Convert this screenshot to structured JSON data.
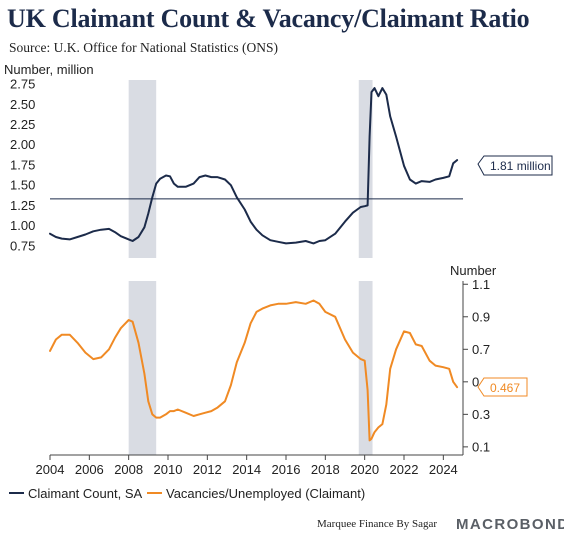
{
  "chart_data": {
    "type": "line",
    "title": "UK Claimant Count & Vacancy/Claimant Ratio",
    "subtitle": "Source: U.K. Office for National Statistics (ONS)",
    "credit": "Marquee Finance By Sagar",
    "logo": "MACROBOND",
    "xlabel": "",
    "x_ticks": [
      "2004",
      "2006",
      "2008",
      "2010",
      "2012",
      "2014",
      "2016",
      "2018",
      "2020",
      "2022",
      "2024"
    ],
    "xlim": [
      2004,
      2025
    ],
    "recessions": [
      [
        2008.0,
        2009.4
      ],
      [
        2019.7,
        2020.4
      ]
    ],
    "panels": [
      {
        "id": "top",
        "ylabel": "Number, million",
        "ylim": [
          0.6,
          2.8
        ],
        "y_ticks": [
          "2.75",
          "2.50",
          "2.25",
          "2.00",
          "1.75",
          "1.50",
          "1.25",
          "1.00",
          "0.75"
        ],
        "y_tick_values": [
          2.75,
          2.5,
          2.25,
          2.0,
          1.75,
          1.5,
          1.25,
          1.0,
          0.75
        ],
        "reference_line": 1.33,
        "end_label": "1.81 million",
        "series": {
          "name": "Claimant Count, SA",
          "color": "#1c2b4a",
          "x": [
            2004.0,
            2004.3,
            2004.6,
            2005.0,
            2005.4,
            2005.8,
            2006.2,
            2006.6,
            2007.0,
            2007.3,
            2007.6,
            2008.0,
            2008.2,
            2008.5,
            2008.8,
            2009.0,
            2009.2,
            2009.4,
            2009.6,
            2009.9,
            2010.1,
            2010.3,
            2010.5,
            2010.9,
            2011.3,
            2011.6,
            2011.9,
            2012.2,
            2012.5,
            2012.9,
            2013.2,
            2013.5,
            2013.9,
            2014.2,
            2014.5,
            2014.8,
            2015.2,
            2015.6,
            2016.0,
            2016.5,
            2017.0,
            2017.4,
            2017.7,
            2018.0,
            2018.5,
            2019.0,
            2019.4,
            2019.8,
            2020.0,
            2020.15,
            2020.25,
            2020.35,
            2020.5,
            2020.7,
            2020.9,
            2021.1,
            2021.3,
            2021.6,
            2022.0,
            2022.3,
            2022.6,
            2022.9,
            2023.3,
            2023.6,
            2024.0,
            2024.3,
            2024.5,
            2024.7
          ],
          "values": [
            0.9,
            0.86,
            0.84,
            0.83,
            0.86,
            0.89,
            0.93,
            0.95,
            0.96,
            0.92,
            0.87,
            0.83,
            0.81,
            0.86,
            0.98,
            1.15,
            1.35,
            1.52,
            1.58,
            1.62,
            1.61,
            1.52,
            1.48,
            1.48,
            1.52,
            1.6,
            1.62,
            1.6,
            1.6,
            1.57,
            1.5,
            1.35,
            1.2,
            1.05,
            0.95,
            0.88,
            0.82,
            0.8,
            0.78,
            0.79,
            0.81,
            0.78,
            0.81,
            0.82,
            0.9,
            1.05,
            1.16,
            1.23,
            1.24,
            1.25,
            2.1,
            2.65,
            2.7,
            2.6,
            2.7,
            2.62,
            2.35,
            2.1,
            1.74,
            1.57,
            1.52,
            1.55,
            1.54,
            1.57,
            1.59,
            1.61,
            1.77,
            1.81
          ]
        }
      },
      {
        "id": "bottom",
        "ylabel": "Number",
        "ylim": [
          0.05,
          1.12
        ],
        "y_ticks": [
          "1.1",
          "0.9",
          "0.7",
          "0.5",
          "0.3",
          "0.1"
        ],
        "y_tick_values": [
          1.1,
          0.9,
          0.7,
          0.5,
          0.3,
          0.1
        ],
        "end_label": "0.467",
        "series": {
          "name": "Vacancies/Unemployed (Claimant)",
          "color": "#f08a24",
          "x": [
            2004.0,
            2004.3,
            2004.6,
            2005.0,
            2005.4,
            2005.8,
            2006.2,
            2006.6,
            2007.0,
            2007.3,
            2007.6,
            2008.0,
            2008.2,
            2008.5,
            2008.8,
            2009.0,
            2009.2,
            2009.4,
            2009.6,
            2009.9,
            2010.1,
            2010.3,
            2010.5,
            2010.9,
            2011.3,
            2011.6,
            2011.9,
            2012.2,
            2012.5,
            2012.9,
            2013.2,
            2013.5,
            2013.9,
            2014.2,
            2014.5,
            2014.8,
            2015.2,
            2015.6,
            2016.0,
            2016.5,
            2017.0,
            2017.4,
            2017.7,
            2018.0,
            2018.5,
            2019.0,
            2019.4,
            2019.8,
            2020.0,
            2020.15,
            2020.25,
            2020.35,
            2020.5,
            2020.7,
            2020.9,
            2021.1,
            2021.3,
            2021.6,
            2022.0,
            2022.3,
            2022.6,
            2022.9,
            2023.3,
            2023.6,
            2024.0,
            2024.3,
            2024.5,
            2024.7
          ],
          "values": [
            0.69,
            0.76,
            0.79,
            0.79,
            0.74,
            0.68,
            0.64,
            0.65,
            0.7,
            0.77,
            0.83,
            0.88,
            0.87,
            0.74,
            0.55,
            0.38,
            0.3,
            0.28,
            0.28,
            0.3,
            0.32,
            0.32,
            0.33,
            0.31,
            0.29,
            0.3,
            0.31,
            0.32,
            0.34,
            0.38,
            0.48,
            0.62,
            0.74,
            0.86,
            0.93,
            0.95,
            0.97,
            0.98,
            0.98,
            0.99,
            0.98,
            1.0,
            0.98,
            0.93,
            0.9,
            0.76,
            0.68,
            0.64,
            0.63,
            0.45,
            0.14,
            0.15,
            0.19,
            0.22,
            0.24,
            0.36,
            0.58,
            0.7,
            0.81,
            0.8,
            0.73,
            0.72,
            0.63,
            0.6,
            0.59,
            0.58,
            0.5,
            0.467
          ]
        }
      }
    ],
    "legend_position": "bottom-left"
  }
}
